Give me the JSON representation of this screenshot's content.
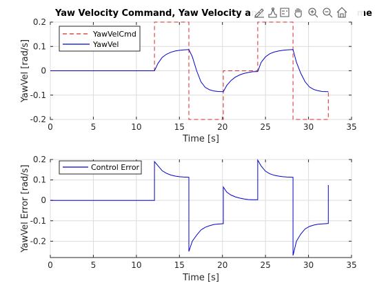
{
  "chart_data": [
    {
      "type": "line",
      "title": "Yaw Velocity Command, Yaw Velocity and",
      "title_end": "me",
      "xlabel": "Time [s]",
      "ylabel": "YawVel [rad/s]",
      "xlim": [
        0,
        35
      ],
      "ylim": [
        -0.2,
        0.2
      ],
      "xticks": [
        0,
        5,
        10,
        15,
        20,
        25,
        30,
        35
      ],
      "xtick_labels": [
        "0",
        "5",
        "10",
        "15",
        "20",
        "25",
        "30",
        "35"
      ],
      "yticks": [
        -0.2,
        -0.1,
        0,
        0.1,
        0.2
      ],
      "ytick_labels": [
        "-0.2",
        "-0.1",
        "0",
        "0.1",
        "0.2"
      ],
      "grid": true,
      "legend_position": "top-left",
      "series": [
        {
          "name": "YawVelCmd",
          "style": "dashed",
          "color": "#d62728",
          "x": [
            0,
            12.1,
            12.1,
            16.1,
            16.1,
            20.1,
            20.1,
            24.1,
            24.1,
            28.2,
            28.2,
            32.3,
            32.3
          ],
          "y": [
            0,
            0,
            0.2,
            0.2,
            -0.2,
            -0.2,
            0,
            0,
            0.2,
            0.2,
            -0.2,
            -0.2,
            -0.08
          ]
        },
        {
          "name": "YawVel",
          "style": "solid",
          "color": "#0000cc",
          "x": [
            0,
            12.1,
            12.5,
            13.0,
            13.5,
            14.0,
            14.5,
            15.0,
            15.5,
            16.1,
            16.5,
            17.0,
            17.5,
            18.0,
            18.5,
            19.0,
            19.5,
            20.1,
            20.5,
            21.0,
            21.5,
            22.0,
            22.5,
            23.0,
            23.5,
            24.1,
            24.5,
            25.0,
            25.5,
            26.0,
            26.5,
            27.0,
            27.5,
            28.2,
            28.6,
            29.1,
            29.6,
            30.1,
            30.6,
            31.1,
            31.6,
            32.3
          ],
          "y": [
            0,
            0,
            0.03,
            0.055,
            0.068,
            0.076,
            0.081,
            0.084,
            0.086,
            0.087,
            0.058,
            0.0,
            -0.045,
            -0.068,
            -0.078,
            -0.083,
            -0.085,
            -0.086,
            -0.06,
            -0.04,
            -0.026,
            -0.017,
            -0.011,
            -0.007,
            -0.004,
            -0.003,
            0.035,
            0.057,
            0.07,
            0.077,
            0.081,
            0.084,
            0.086,
            0.087,
            0.035,
            -0.01,
            -0.045,
            -0.066,
            -0.077,
            -0.082,
            -0.085,
            -0.086
          ]
        }
      ]
    },
    {
      "type": "line",
      "title": "",
      "xlabel": "Time [s]",
      "ylabel": "YawVel Error [rad/s]",
      "xlim": [
        0,
        35
      ],
      "ylim": [
        -0.28,
        0.2
      ],
      "xticks": [
        0,
        5,
        10,
        15,
        20,
        25,
        30,
        35
      ],
      "xtick_labels": [
        "0",
        "5",
        "10",
        "15",
        "20",
        "25",
        "30",
        "35"
      ],
      "yticks": [
        -0.2,
        -0.1,
        0,
        0.1,
        0.2
      ],
      "ytick_labels": [
        "-0.2",
        "-0.1",
        "0",
        "0.1",
        "0.2"
      ],
      "grid": true,
      "legend_position": "top-left",
      "series": [
        {
          "name": "Control Error",
          "style": "solid",
          "color": "#0000cc",
          "x": [
            0,
            12.1,
            12.1,
            12.5,
            13.0,
            13.5,
            14.0,
            14.5,
            15.0,
            15.5,
            16.1,
            16.1,
            16.5,
            17.0,
            17.5,
            18.0,
            18.5,
            19.0,
            19.5,
            20.1,
            20.1,
            20.5,
            21.0,
            21.5,
            22.0,
            22.5,
            23.0,
            23.5,
            24.1,
            24.1,
            24.5,
            25.0,
            25.5,
            26.0,
            26.5,
            27.0,
            27.5,
            28.2,
            28.2,
            28.6,
            29.1,
            29.6,
            30.1,
            30.6,
            31.1,
            31.6,
            32.3,
            32.3
          ],
          "y": [
            0,
            0,
            0.19,
            0.17,
            0.145,
            0.132,
            0.124,
            0.119,
            0.116,
            0.114,
            0.113,
            -0.25,
            -0.2,
            -0.17,
            -0.145,
            -0.132,
            -0.124,
            -0.118,
            -0.116,
            -0.114,
            0.065,
            0.04,
            0.026,
            0.017,
            0.011,
            0.007,
            0.004,
            0.003,
            0.003,
            0.197,
            0.168,
            0.143,
            0.13,
            0.123,
            0.119,
            0.116,
            0.114,
            0.113,
            -0.27,
            -0.2,
            -0.165,
            -0.14,
            -0.128,
            -0.121,
            -0.117,
            -0.115,
            -0.113,
            0.075
          ]
        }
      ]
    }
  ]
}
